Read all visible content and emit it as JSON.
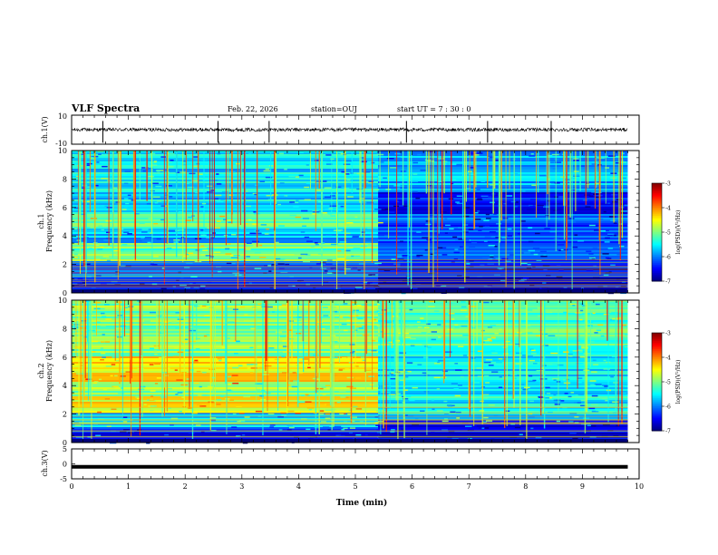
{
  "header": {
    "title": "VLF Spectra",
    "date": "Feb. 22, 2026",
    "station": "station=OUJ",
    "start": "start  UT =   7 : 30 : 0"
  },
  "chart_data": [
    {
      "type": "line",
      "panel": "ch1-waveform",
      "ylabel": "ch.1(V)",
      "ylim": [
        -10,
        10
      ],
      "ytick_labels": [
        "10",
        "-10"
      ],
      "xlim": [
        0,
        10
      ],
      "series": [
        {
          "values_description_level": 0.0,
          "noise_amplitude": 1.2,
          "y_center": 0.0
        }
      ],
      "spikes_at_min": [
        0.55,
        2.58,
        3.48,
        5.9,
        7.33,
        8.45
      ]
    },
    {
      "type": "heatmap",
      "panel": "ch1-spectrogram",
      "ylabel": "ch.1\nFrequency (kHz)",
      "ylabel_lines": [
        "ch.1",
        "Frequency (kHz)"
      ],
      "xlim": [
        0,
        10
      ],
      "ylim": [
        0,
        10
      ],
      "ytick_labels": [
        "0",
        "2",
        "4",
        "6",
        "8",
        "10"
      ],
      "ytick_values": [
        0,
        2,
        4,
        6,
        8,
        10
      ],
      "data_extent_min": 9.8,
      "transition_min": 5.4,
      "colorbar": {
        "label": "log(PSD)(V²/Hz)",
        "range": [
          -7,
          -3
        ],
        "tick_labels": [
          "-3",
          "-4",
          "-5",
          "-6",
          "-7"
        ],
        "tick_values": [
          -3,
          -4,
          -5,
          -6,
          -7
        ]
      },
      "bands_before": [
        {
          "f_from_khz": 0,
          "f_to_khz": 1.0,
          "log_psd": -6.5
        },
        {
          "f_from_khz": 1.0,
          "f_to_khz": 2.2,
          "log_psd": -6.2
        },
        {
          "f_from_khz": 2.2,
          "f_to_khz": 3.5,
          "log_psd": -5.1
        },
        {
          "f_from_khz": 3.5,
          "f_to_khz": 4.5,
          "log_psd": -5.8
        },
        {
          "f_from_khz": 4.5,
          "f_to_khz": 5.7,
          "log_psd": -5.0
        },
        {
          "f_from_khz": 5.7,
          "f_to_khz": 10,
          "log_psd": -5.6
        }
      ],
      "bands_after": [
        {
          "f_from_khz": 0,
          "f_to_khz": 2.0,
          "log_psd": -6.6
        },
        {
          "f_from_khz": 2.0,
          "f_to_khz": 5.5,
          "log_psd": -6.2
        },
        {
          "f_from_khz": 5.5,
          "f_to_khz": 7.0,
          "log_psd": -6.5
        },
        {
          "f_from_khz": 7.0,
          "f_to_khz": 10,
          "log_psd": -5.8
        }
      ]
    },
    {
      "type": "heatmap",
      "panel": "ch2-spectrogram",
      "ylabel": "ch.2\nFrequency (kHz)",
      "ylabel_lines": [
        "ch.2",
        "Frequency (kHz)"
      ],
      "xlim": [
        0,
        10
      ],
      "ylim": [
        0,
        10
      ],
      "ytick_labels": [
        "0",
        "2",
        "4",
        "6",
        "8",
        "10"
      ],
      "ytick_values": [
        0,
        2,
        4,
        6,
        8,
        10
      ],
      "data_extent_min": 9.8,
      "transition_min": 5.4,
      "colorbar": {
        "label": "log(PSD)(V²/Hz)",
        "range": [
          -7,
          -3
        ],
        "tick_labels": [
          "-3",
          "-4",
          "-5",
          "-6",
          "-7"
        ],
        "tick_values": [
          -3,
          -4,
          -5,
          -6,
          -7
        ]
      },
      "bands_before": [
        {
          "f_from_khz": 0,
          "f_to_khz": 1.0,
          "log_psd": -6.4
        },
        {
          "f_from_khz": 1.0,
          "f_to_khz": 2.0,
          "log_psd": -5.6
        },
        {
          "f_from_khz": 2.0,
          "f_to_khz": 3.2,
          "log_psd": -4.5
        },
        {
          "f_from_khz": 3.2,
          "f_to_khz": 4.2,
          "log_psd": -4.9
        },
        {
          "f_from_khz": 4.2,
          "f_to_khz": 6.0,
          "log_psd": -4.4
        },
        {
          "f_from_khz": 6.0,
          "f_to_khz": 10,
          "log_psd": -5.0
        }
      ],
      "bands_after": [
        {
          "f_from_khz": 0,
          "f_to_khz": 1.5,
          "log_psd": -6.5
        },
        {
          "f_from_khz": 1.5,
          "f_to_khz": 6.0,
          "log_psd": -5.5
        },
        {
          "f_from_khz": 6.0,
          "f_to_khz": 10,
          "log_psd": -5.2
        }
      ]
    },
    {
      "type": "line",
      "panel": "ch3-waveform",
      "ylabel": "ch.3(V)",
      "ylim": [
        -5,
        5
      ],
      "ytick_labels": [
        "5",
        "0",
        "-5"
      ],
      "ytick_values": [
        5,
        0,
        -5
      ],
      "xlim": [
        0,
        10
      ],
      "xlabel": "Time (min)",
      "xtick_labels": [
        "0",
        "1",
        "2",
        "3",
        "4",
        "5",
        "6",
        "7",
        "8",
        "9",
        "10"
      ],
      "xtick_values": [
        0,
        1,
        2,
        3,
        4,
        5,
        6,
        7,
        8,
        9,
        10
      ],
      "series": [
        {
          "values_description_level": -1.0,
          "y_center": -1.0,
          "noise_amplitude": 0.1
        }
      ]
    }
  ],
  "colors": {
    "frame": "#000000",
    "waveform": "#000000",
    "colormap": [
      "#000080",
      "#0000ff",
      "#00ffff",
      "#00ff00",
      "#ffff00",
      "#ff0000",
      "#ffffff"
    ]
  }
}
